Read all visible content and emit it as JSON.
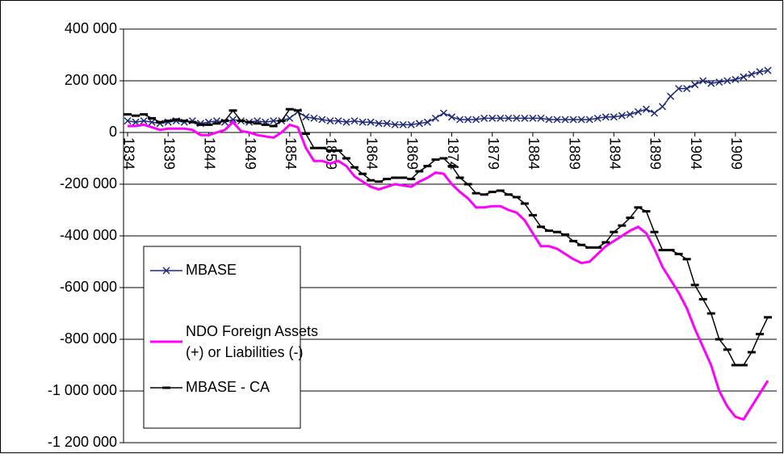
{
  "chart_data": {
    "type": "line",
    "x": [
      1834,
      1835,
      1836,
      1837,
      1838,
      1839,
      1840,
      1841,
      1842,
      1843,
      1844,
      1845,
      1846,
      1847,
      1848,
      1849,
      1850,
      1851,
      1852,
      1853,
      1854,
      1855,
      1856,
      1857,
      1858,
      1859,
      1860,
      1861,
      1862,
      1863,
      1864,
      1865,
      1866,
      1867,
      1868,
      1869,
      1870,
      1871,
      1872,
      1873,
      1874,
      1875,
      1876,
      1877,
      1878,
      1879,
      1880,
      1881,
      1882,
      1883,
      1884,
      1885,
      1886,
      1887,
      1888,
      1889,
      1890,
      1891,
      1892,
      1893,
      1894,
      1895,
      1896,
      1897,
      1898,
      1899,
      1900,
      1901,
      1902,
      1903,
      1904,
      1905,
      1906,
      1907,
      1908,
      1909,
      1910,
      1911,
      1912,
      1913
    ],
    "xlim": [
      1833.5,
      1913.5
    ],
    "xticks": [
      1834,
      1839,
      1844,
      1849,
      1854,
      1859,
      1864,
      1869,
      1874,
      1879,
      1884,
      1889,
      1894,
      1899,
      1904,
      1909
    ],
    "ylim": [
      -1200000,
      400000
    ],
    "yticks": [
      {
        "value": -1200000,
        "label": "-1 200 000"
      },
      {
        "value": -1000000,
        "label": "-1 000 000"
      },
      {
        "value": -800000,
        "label": "-800 000"
      },
      {
        "value": -600000,
        "label": "-600 000"
      },
      {
        "value": -400000,
        "label": "-400 000"
      },
      {
        "value": -200000,
        "label": "-200 000"
      },
      0,
      {
        "value": 200000,
        "label": "200 000"
      },
      {
        "value": 400000,
        "label": "400 000"
      }
    ],
    "grid": true,
    "legend": "lower left",
    "series": [
      {
        "name": "MBASE",
        "color": "#1f2a7a",
        "marker": "x",
        "values": [
          45000,
          40000,
          45000,
          40000,
          35000,
          40000,
          45000,
          40000,
          45000,
          35000,
          40000,
          45000,
          40000,
          50000,
          45000,
          40000,
          45000,
          40000,
          45000,
          45000,
          55000,
          80000,
          60000,
          55000,
          50000,
          45000,
          45000,
          40000,
          45000,
          40000,
          40000,
          35000,
          35000,
          30000,
          30000,
          30000,
          35000,
          40000,
          55000,
          75000,
          60000,
          50000,
          50000,
          50000,
          55000,
          55000,
          55000,
          55000,
          55000,
          55000,
          55000,
          55000,
          50000,
          50000,
          50000,
          50000,
          50000,
          50000,
          55000,
          60000,
          60000,
          65000,
          70000,
          80000,
          90000,
          75000,
          100000,
          140000,
          170000,
          170000,
          185000,
          200000,
          190000,
          195000,
          200000,
          205000,
          215000,
          225000,
          235000,
          240000
        ]
      },
      {
        "name": "NDO Foreign Assets (+) or Liabilities (-)",
        "color": "#ff00ff",
        "marker": "none",
        "values": [
          25000,
          25000,
          30000,
          20000,
          10000,
          15000,
          15000,
          15000,
          10000,
          -10000,
          -10000,
          0,
          10000,
          40000,
          5000,
          0,
          -10000,
          -15000,
          -20000,
          0,
          30000,
          20000,
          -60000,
          -110000,
          -110000,
          -120000,
          -110000,
          -130000,
          -170000,
          -190000,
          -210000,
          -220000,
          -210000,
          -200000,
          -205000,
          -210000,
          -190000,
          -175000,
          -155000,
          -160000,
          -200000,
          -230000,
          -255000,
          -290000,
          -290000,
          -285000,
          -285000,
          -300000,
          -310000,
          -340000,
          -390000,
          -440000,
          -440000,
          -450000,
          -470000,
          -490000,
          -505000,
          -500000,
          -470000,
          -440000,
          -420000,
          -400000,
          -380000,
          -365000,
          -390000,
          -450000,
          -520000,
          -570000,
          -620000,
          -680000,
          -760000,
          -830000,
          -900000,
          -1000000,
          -1060000,
          -1100000,
          -1110000,
          -1060000,
          -1010000,
          -960000
        ]
      },
      {
        "name": "MBASE - CA",
        "color": "#000000",
        "marker": "dash",
        "values": [
          70000,
          65000,
          70000,
          55000,
          40000,
          45000,
          50000,
          45000,
          40000,
          30000,
          30000,
          35000,
          45000,
          85000,
          45000,
          40000,
          35000,
          30000,
          25000,
          45000,
          90000,
          85000,
          -5000,
          -60000,
          -60000,
          -70000,
          -70000,
          -100000,
          -135000,
          -160000,
          -185000,
          -190000,
          -180000,
          -175000,
          -175000,
          -180000,
          -150000,
          -130000,
          -105000,
          -100000,
          -130000,
          -175000,
          -200000,
          -235000,
          -240000,
          -230000,
          -225000,
          -240000,
          -250000,
          -275000,
          -320000,
          -365000,
          -380000,
          -385000,
          -395000,
          -420000,
          -435000,
          -445000,
          -445000,
          -425000,
          -385000,
          -360000,
          -330000,
          -290000,
          -305000,
          -385000,
          -455000,
          -455000,
          -470000,
          -490000,
          -590000,
          -645000,
          -700000,
          -800000,
          -840000,
          -900000,
          -900000,
          -850000,
          -780000,
          -715000
        ]
      }
    ]
  }
}
